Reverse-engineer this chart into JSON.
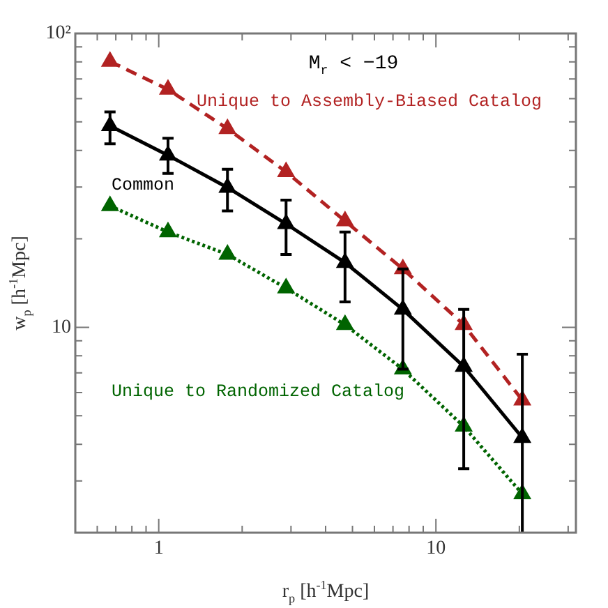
{
  "chart_data": {
    "type": "line",
    "xlabel": "r$_{p}$ [h$^{-1}$Mpc]",
    "ylabel": "w$_{p}$ [h$^{-1}$Mpc]",
    "annotations": [
      "M$_{r}$ < −19"
    ],
    "x": [
      0.667,
      1.08,
      1.77,
      2.88,
      4.7,
      7.6,
      12.6,
      20.5
    ],
    "log": "xy",
    "marker": "triangle",
    "grid": false,
    "legend": false,
    "xlim": [
      0.5,
      32
    ],
    "ylim": [
      2,
      100
    ],
    "xticks": [
      {
        "value": 0.5,
        "label": null
      },
      {
        "value": 0.6,
        "label": null
      },
      {
        "value": 0.7,
        "label": null
      },
      {
        "value": 0.8,
        "label": null
      },
      {
        "value": 0.9,
        "label": null
      },
      1,
      {
        "value": 2,
        "label": null
      },
      {
        "value": 3,
        "label": null
      },
      {
        "value": 4,
        "label": null
      },
      {
        "value": 5,
        "label": null
      },
      {
        "value": 6,
        "label": null
      },
      {
        "value": 7,
        "label": null
      },
      {
        "value": 8,
        "label": null
      },
      {
        "value": 9,
        "label": null
      },
      10,
      {
        "value": 20,
        "label": null
      },
      {
        "value": 30,
        "label": null
      }
    ],
    "yticks": [
      {
        "value": 2,
        "label": null
      },
      {
        "value": 3,
        "label": null
      },
      {
        "value": 4,
        "label": null
      },
      {
        "value": 5,
        "label": null
      },
      {
        "value": 6,
        "label": null
      },
      {
        "value": 7,
        "label": null
      },
      {
        "value": 8,
        "label": null
      },
      {
        "value": 9,
        "label": null
      },
      10,
      {
        "value": 20,
        "label": null
      },
      {
        "value": 30,
        "label": null
      },
      {
        "value": 40,
        "label": null
      },
      {
        "value": 50,
        "label": null
      },
      {
        "value": 60,
        "label": null
      },
      {
        "value": 70,
        "label": null
      },
      {
        "value": 80,
        "label": null
      },
      {
        "value": 90,
        "label": null
      },
      {
        "value": 100,
        "label": "10²"
      }
    ],
    "series": [
      {
        "name": "Unique to Assembly-Biased Catalog",
        "color": "#b22222",
        "line_style": "dashed",
        "values": [
          80.3,
          64.5,
          47.4,
          33.8,
          23.0,
          15.8,
          10.2,
          5.65
        ]
      },
      {
        "name": "Common",
        "color": "#000000",
        "line_style": "solid",
        "values": [
          48.5,
          38.5,
          29.9,
          22.5,
          16.6,
          11.5,
          7.35,
          4.21
        ],
        "errors": [
          [
            42.1,
            54.1
          ],
          [
            33.4,
            44.0
          ],
          [
            24.9,
            34.5
          ],
          [
            17.7,
            27.1
          ],
          [
            12.2,
            21.1
          ],
          [
            7.2,
            15.8
          ],
          [
            3.3,
            11.5
          ],
          [
            2,
            8.1
          ]
        ]
      },
      {
        "name": "Unique to Randomized Catalog",
        "color": "#006400",
        "line_style": "dotted",
        "values": [
          25.9,
          21.1,
          17.7,
          13.6,
          10.2,
          7.2,
          4.6,
          2.71
        ]
      }
    ]
  }
}
